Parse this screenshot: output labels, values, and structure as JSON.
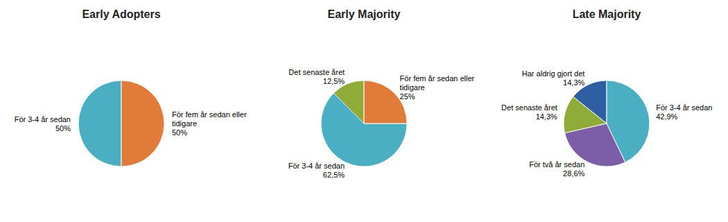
{
  "chart_data": [
    {
      "type": "pie",
      "title": "Early Adopters",
      "categories": [
        "För 3-4 år sedan",
        "För fem år sedan eller\ntidigare"
      ],
      "values": [
        50.0,
        50.0
      ],
      "value_labels": [
        "50%",
        "50%"
      ],
      "colors": [
        "#4aafc2",
        "#e07b39"
      ],
      "data_labels": true
    },
    {
      "type": "pie",
      "title": "Early Majority",
      "categories": [
        "Det senaste året",
        "För 3-4 år sedan",
        "För fem år sedan eller\ntidigare"
      ],
      "values": [
        12.5,
        62.5,
        25.0
      ],
      "value_labels": [
        "12,5%",
        "62,5%",
        "25%"
      ],
      "colors": [
        "#8fac38",
        "#4aafc2",
        "#e07b39"
      ],
      "data_labels": true
    },
    {
      "type": "pie",
      "title": "Late Majority",
      "categories": [
        "Har aldrig gjort det",
        "Det senaste året",
        "För två år sedan",
        "För 3-4 år sedan"
      ],
      "values": [
        14.3,
        14.3,
        28.6,
        42.9
      ],
      "value_labels": [
        "14,3%",
        "14,3%",
        "28,6%",
        "42,9%"
      ],
      "colors": [
        "#2e5fa3",
        "#8fac38",
        "#7b5ea7",
        "#4aafc2"
      ],
      "data_labels": true
    }
  ]
}
